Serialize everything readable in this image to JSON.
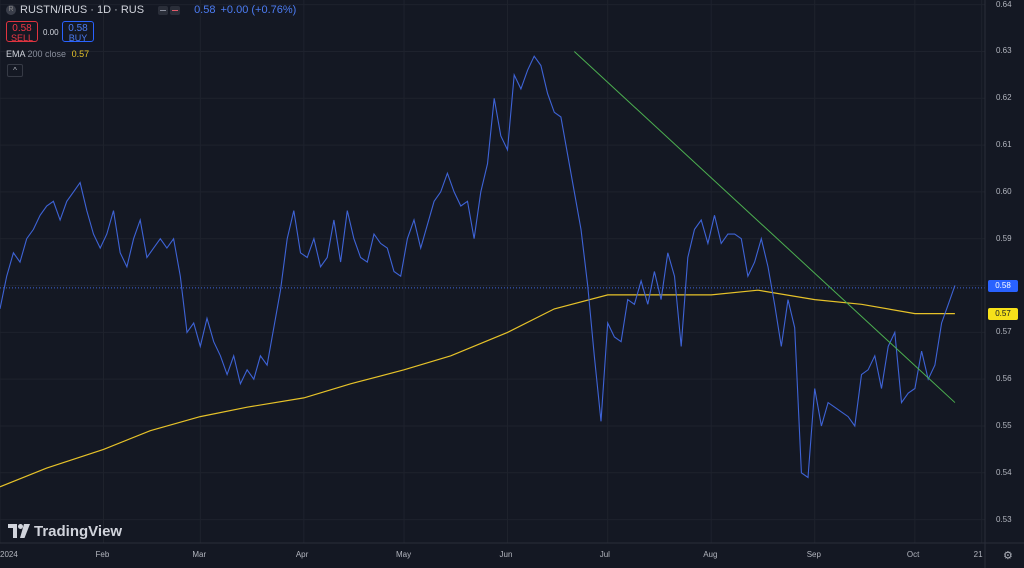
{
  "header": {
    "symbol": "RUSTN/IRUS · 1D · RUS",
    "last_price": "0.58",
    "change": "+0.00 (+0.76%)"
  },
  "trade": {
    "sell_price": "0.58",
    "sell_label": "SELL",
    "spread": "0.00",
    "buy_price": "0.58",
    "buy_label": "BUY"
  },
  "indicator": {
    "name": "EMA",
    "params": "200 close",
    "value": "0.57"
  },
  "price_tags": {
    "last": "0.58",
    "ema": "0.57"
  },
  "branding": {
    "logo_text": "TradingView"
  },
  "colors": {
    "background": "#141823",
    "price_line": "#3e63d6",
    "ema_line": "#e6c229",
    "trend_line": "#4caf50",
    "sell": "#f23645",
    "buy": "#2962ff"
  },
  "icons": {
    "settings": "gear-icon",
    "collapse": "chevron-up-icon"
  },
  "chart_data": {
    "type": "line",
    "ylim": [
      0.525,
      0.641
    ],
    "yticks": [
      0.64,
      0.63,
      0.62,
      0.61,
      0.6,
      0.59,
      0.58,
      0.57,
      0.56,
      0.55,
      0.54,
      0.53
    ],
    "xlim": [
      "2024-01-01",
      "2024-10-22"
    ],
    "xticks": [
      {
        "date": "2024-01-01",
        "label": "2024"
      },
      {
        "date": "2024-02-01",
        "label": "Feb"
      },
      {
        "date": "2024-03-01",
        "label": "Mar"
      },
      {
        "date": "2024-04-01",
        "label": "Apr"
      },
      {
        "date": "2024-05-01",
        "label": "May"
      },
      {
        "date": "2024-06-01",
        "label": "Jun"
      },
      {
        "date": "2024-07-01",
        "label": "Jul"
      },
      {
        "date": "2024-08-01",
        "label": "Aug"
      },
      {
        "date": "2024-09-01",
        "label": "Sep"
      },
      {
        "date": "2024-10-01",
        "label": "Oct"
      },
      {
        "date": "2024-10-21",
        "label": "21"
      }
    ],
    "series": [
      {
        "role": "price",
        "x": [
          "2024-01-01",
          "2024-01-03",
          "2024-01-05",
          "2024-01-07",
          "2024-01-09",
          "2024-01-11",
          "2024-01-13",
          "2024-01-15",
          "2024-01-17",
          "2024-01-19",
          "2024-01-21",
          "2024-01-23",
          "2024-01-25",
          "2024-01-27",
          "2024-01-29",
          "2024-01-31",
          "2024-02-02",
          "2024-02-04",
          "2024-02-06",
          "2024-02-08",
          "2024-02-10",
          "2024-02-12",
          "2024-02-14",
          "2024-02-16",
          "2024-02-18",
          "2024-02-20",
          "2024-02-22",
          "2024-02-24",
          "2024-02-26",
          "2024-02-28",
          "2024-03-01",
          "2024-03-03",
          "2024-03-05",
          "2024-03-07",
          "2024-03-09",
          "2024-03-11",
          "2024-03-13",
          "2024-03-15",
          "2024-03-17",
          "2024-03-19",
          "2024-03-21",
          "2024-03-23",
          "2024-03-25",
          "2024-03-27",
          "2024-03-29",
          "2024-03-31",
          "2024-04-02",
          "2024-04-04",
          "2024-04-06",
          "2024-04-08",
          "2024-04-10",
          "2024-04-12",
          "2024-04-14",
          "2024-04-16",
          "2024-04-18",
          "2024-04-20",
          "2024-04-22",
          "2024-04-24",
          "2024-04-26",
          "2024-04-28",
          "2024-04-30",
          "2024-05-02",
          "2024-05-04",
          "2024-05-06",
          "2024-05-08",
          "2024-05-10",
          "2024-05-12",
          "2024-05-14",
          "2024-05-16",
          "2024-05-18",
          "2024-05-20",
          "2024-05-22",
          "2024-05-24",
          "2024-05-26",
          "2024-05-28",
          "2024-05-30",
          "2024-06-01",
          "2024-06-03",
          "2024-06-05",
          "2024-06-07",
          "2024-06-09",
          "2024-06-11",
          "2024-06-13",
          "2024-06-15",
          "2024-06-17",
          "2024-06-19",
          "2024-06-21",
          "2024-06-23",
          "2024-06-25",
          "2024-06-27",
          "2024-06-29",
          "2024-07-01",
          "2024-07-03",
          "2024-07-05",
          "2024-07-07",
          "2024-07-09",
          "2024-07-11",
          "2024-07-13",
          "2024-07-15",
          "2024-07-17",
          "2024-07-19",
          "2024-07-21",
          "2024-07-23",
          "2024-07-25",
          "2024-07-27",
          "2024-07-29",
          "2024-07-31",
          "2024-08-02",
          "2024-08-04",
          "2024-08-06",
          "2024-08-08",
          "2024-08-10",
          "2024-08-12",
          "2024-08-14",
          "2024-08-16",
          "2024-08-18",
          "2024-08-20",
          "2024-08-22",
          "2024-08-24",
          "2024-08-26",
          "2024-08-28",
          "2024-08-30",
          "2024-09-01",
          "2024-09-03",
          "2024-09-05",
          "2024-09-07",
          "2024-09-09",
          "2024-09-11",
          "2024-09-13",
          "2024-09-15",
          "2024-09-17",
          "2024-09-19",
          "2024-09-21",
          "2024-09-23",
          "2024-09-25",
          "2024-09-27",
          "2024-09-29",
          "2024-10-01",
          "2024-10-03",
          "2024-10-05",
          "2024-10-07",
          "2024-10-09",
          "2024-10-11",
          "2024-10-13"
        ],
        "y": [
          0.575,
          0.582,
          0.587,
          0.585,
          0.59,
          0.592,
          0.595,
          0.597,
          0.598,
          0.594,
          0.598,
          0.6,
          0.602,
          0.596,
          0.591,
          0.588,
          0.591,
          0.596,
          0.587,
          0.584,
          0.59,
          0.594,
          0.586,
          0.588,
          0.59,
          0.588,
          0.59,
          0.582,
          0.57,
          0.572,
          0.567,
          0.573,
          0.568,
          0.565,
          0.561,
          0.565,
          0.559,
          0.562,
          0.56,
          0.565,
          0.563,
          0.571,
          0.579,
          0.59,
          0.596,
          0.587,
          0.586,
          0.59,
          0.584,
          0.586,
          0.594,
          0.585,
          0.596,
          0.59,
          0.586,
          0.585,
          0.591,
          0.589,
          0.588,
          0.583,
          0.582,
          0.59,
          0.594,
          0.588,
          0.593,
          0.598,
          0.6,
          0.604,
          0.6,
          0.597,
          0.598,
          0.59,
          0.6,
          0.606,
          0.62,
          0.612,
          0.609,
          0.625,
          0.622,
          0.626,
          0.629,
          0.627,
          0.621,
          0.617,
          0.616,
          0.608,
          0.6,
          0.592,
          0.58,
          0.565,
          0.551,
          0.572,
          0.569,
          0.568,
          0.577,
          0.576,
          0.581,
          0.576,
          0.583,
          0.577,
          0.587,
          0.582,
          0.567,
          0.586,
          0.592,
          0.594,
          0.589,
          0.595,
          0.589,
          0.591,
          0.591,
          0.59,
          0.582,
          0.585,
          0.59,
          0.584,
          0.576,
          0.567,
          0.577,
          0.571,
          0.54,
          0.539,
          0.558,
          0.55,
          0.555,
          0.554,
          0.553,
          0.552,
          0.55,
          0.561,
          0.562,
          0.565,
          0.558,
          0.567,
          0.57,
          0.555,
          0.557,
          0.558,
          0.566,
          0.56,
          0.563,
          0.572,
          0.576,
          0.58
        ]
      },
      {
        "role": "ema",
        "name": "EMA 200 close",
        "x": [
          "2024-01-01",
          "2024-01-15",
          "2024-02-01",
          "2024-02-15",
          "2024-03-01",
          "2024-03-15",
          "2024-04-01",
          "2024-04-15",
          "2024-05-01",
          "2024-05-15",
          "2024-06-01",
          "2024-06-15",
          "2024-07-01",
          "2024-07-15",
          "2024-08-01",
          "2024-08-15",
          "2024-09-01",
          "2024-09-15",
          "2024-10-01",
          "2024-10-13"
        ],
        "y": [
          0.537,
          0.541,
          0.545,
          0.549,
          0.552,
          0.554,
          0.556,
          0.559,
          0.562,
          0.565,
          0.57,
          0.575,
          0.578,
          0.578,
          0.578,
          0.579,
          0.577,
          0.576,
          0.574,
          0.574
        ]
      }
    ],
    "trendline": {
      "from": [
        "2024-06-21",
        0.63
      ],
      "to": [
        "2024-10-13",
        0.555
      ]
    },
    "last_price_line": 0.5795,
    "grid": true
  }
}
